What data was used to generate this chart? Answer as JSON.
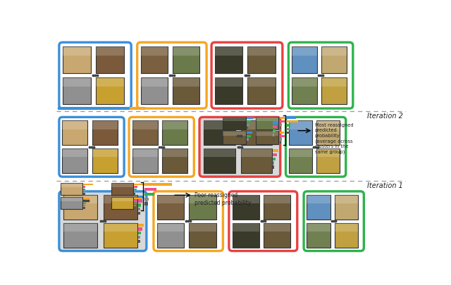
{
  "bg_color": "#ffffff",
  "section_colors": {
    "blue": "#3a8fd9",
    "orange": "#f5a623",
    "red": "#e84040",
    "green": "#2db34a"
  },
  "bar_colors": {
    "orange": "#f5a623",
    "pink": "#f05090",
    "green": "#30b050",
    "blue": "#3a8fd9",
    "gray1": "#888888",
    "gray2": "#555555"
  },
  "dash_color": "#999999",
  "text_color": "#222222",
  "iter2_label": "Iteration 2",
  "iter1_label": "Iteration 1",
  "iter2_annotation": "Most reassigned\npredicted\nprobability\n(average across\nclusters in the\nsame group)",
  "iter1_annotation": "Poor reassigned\npredicted probability",
  "img_colors": {
    "dog_tan": "#c8a870",
    "dog_brown": "#7a5a3a",
    "cat_gray": "#909090",
    "dog_gold": "#c8a030",
    "horse_dark": "#3a3a2a",
    "horse_brown": "#6a5a3a",
    "door_brown": "#7a6040",
    "horse_field": "#6a7a4a",
    "bird_sky": "#6090c0",
    "bird_tan": "#c0a870",
    "bird_green": "#708050",
    "bird_yellow": "#c0a040"
  }
}
